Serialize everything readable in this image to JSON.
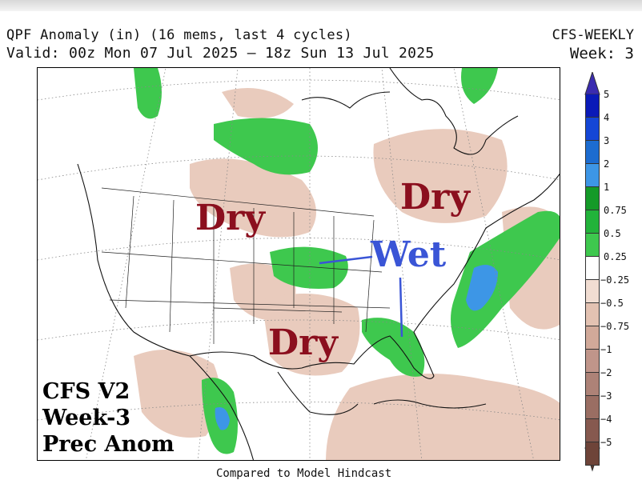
{
  "header": {
    "title": "QPF Anomaly (in) (16 mems, last 4 cycles)",
    "valid": "Valid: 00z Mon 07 Jul 2025 – 18z Sun 13 Jul 2025",
    "model": "CFS-WEEKLY",
    "week": "Week: 3"
  },
  "annotations": {
    "dry_west": "Dry",
    "dry_east": "Dry",
    "dry_south": "Dry",
    "wet": "Wet"
  },
  "product_box": {
    "line1": "CFS V2",
    "line2": "Week-3",
    "line3": "Prec Anom"
  },
  "footer": "Compared to Model Hindcast",
  "colorbar": {
    "labels": [
      "5",
      "4",
      "3",
      "2",
      "1",
      "0.75",
      "0.5",
      "0.25",
      "−0.25",
      "−0.5",
      "−0.75",
      "−1",
      "−2",
      "−3",
      "−4",
      "−5"
    ],
    "colors": [
      "#0a1ab8",
      "#1446d6",
      "#1c6cd0",
      "#3d96e6",
      "#149a28",
      "#22b33a",
      "#3ec84e",
      "#ffffff",
      "#f1ddd2",
      "#e3c2b2",
      "#d1a999",
      "#c0958a",
      "#ad8277",
      "#9a6e63",
      "#86594f",
      "#6e4439"
    ],
    "top_arrow_color": "#3a2bb0",
    "bottom_arrow_color": "#5e3a2e"
  },
  "colors": {
    "dry_text": "#8b0f1e",
    "wet_text": "#3a55d6",
    "wet_fill": "#3ec84e",
    "dry_fill": "#e9cbbd"
  }
}
